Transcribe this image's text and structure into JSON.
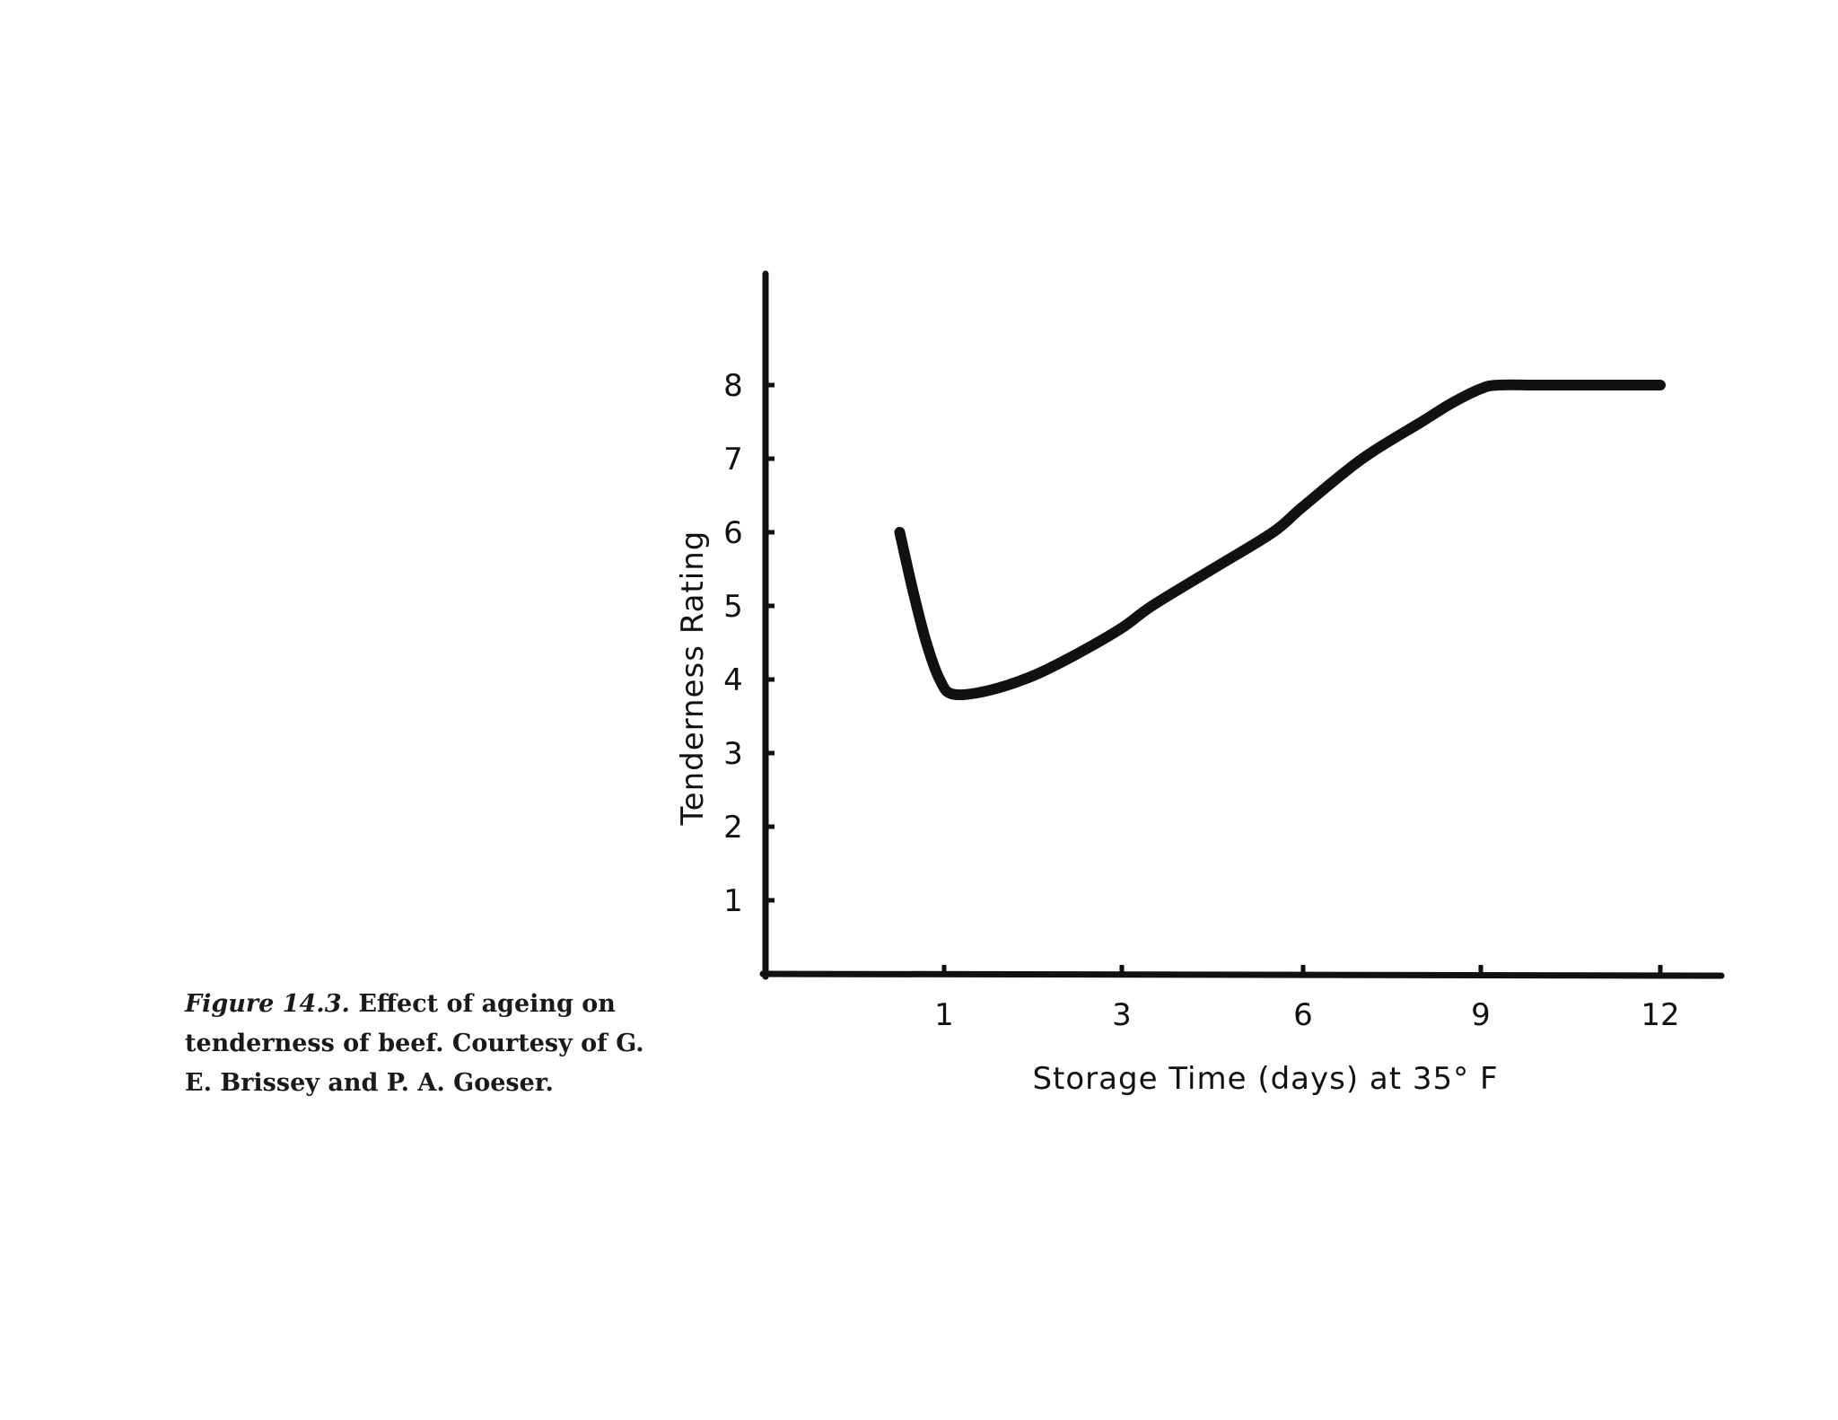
{
  "caption": {
    "label": "Figure 14.3.",
    "text": "Effect of ageing on tenderness of beef. Courtesy of G. E. Brissey and P. A. Goeser."
  },
  "chart_data": {
    "type": "line",
    "xlabel": "Storage Time (days) at 35° F",
    "ylabel": "Tenderness Rating",
    "x_ticks": [
      "1",
      "3",
      "6",
      "9",
      "12"
    ],
    "y_ticks": [
      1,
      2,
      3,
      4,
      5,
      6,
      7,
      8
    ],
    "ylim": [
      0,
      9.5
    ],
    "grid": false,
    "legend": "none",
    "series": [
      {
        "x": [
          0.5,
          0.65,
          0.8,
          0.95,
          1.1,
          1.5,
          2.0,
          2.5,
          3.0,
          3.5,
          4.5,
          5.5,
          6.0,
          7.0,
          8.0,
          8.5,
          9.0,
          9.3,
          10.0,
          11.0,
          12.0
        ],
        "y": [
          6.0,
          5.2,
          4.5,
          4.0,
          3.8,
          3.85,
          4.05,
          4.35,
          4.7,
          5.0,
          5.5,
          6.0,
          6.35,
          7.0,
          7.5,
          7.75,
          7.95,
          8.0,
          8.0,
          8.0,
          8.0
        ]
      }
    ],
    "line_color": "#111111"
  }
}
